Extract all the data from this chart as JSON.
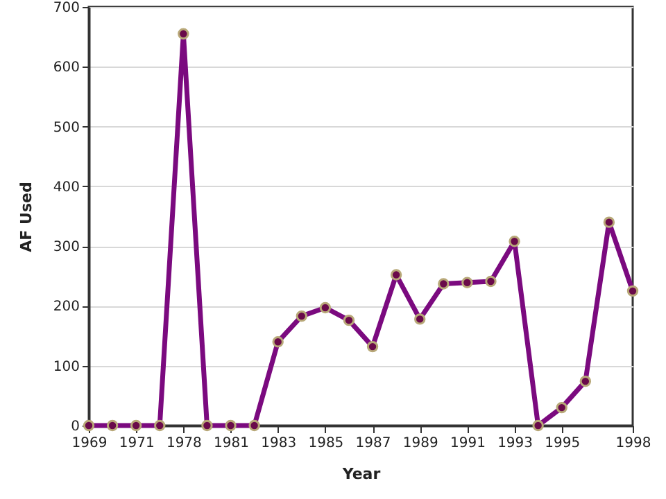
{
  "chart_data": {
    "type": "line",
    "xlabel": "Year",
    "ylabel": "AF Used",
    "categories": [
      "1969",
      null,
      "1971",
      null,
      "1978",
      null,
      "1981",
      null,
      "1983",
      null,
      "1985",
      null,
      "1987",
      null,
      "1989",
      null,
      "1991",
      null,
      "1993",
      null,
      "1995",
      null,
      null,
      "1998"
    ],
    "series": [
      {
        "color": "#7b0a7f",
        "values": [
          0,
          0,
          0,
          0,
          655,
          0,
          0,
          0,
          140,
          183,
          197,
          176,
          132,
          252,
          178,
          237,
          239,
          241,
          308,
          0,
          30,
          74,
          340,
          225
        ]
      }
    ],
    "ylim": [
      0,
      700
    ],
    "yticks": [
      0,
      100,
      200,
      300,
      400,
      500,
      600,
      700
    ],
    "grid": "y",
    "marker": "circle",
    "line_style": "solid"
  }
}
